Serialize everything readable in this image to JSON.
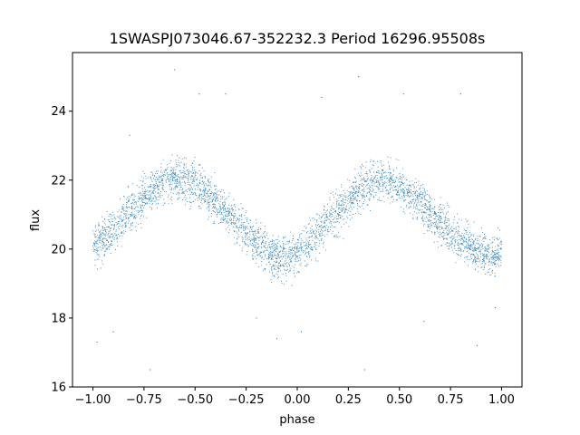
{
  "chart_data": {
    "type": "scatter",
    "title": "1SWASPJ073046.67-352232.3 Period 16296.95508s",
    "xlabel": "phase",
    "ylabel": "flux",
    "xlim": [
      -1.1,
      1.1
    ],
    "ylim": [
      16.0,
      25.7
    ],
    "xticks": [
      -1.0,
      -0.75,
      -0.5,
      -0.25,
      0.0,
      0.25,
      0.5,
      0.75,
      1.0
    ],
    "xtick_labels": [
      "−1.00",
      "−0.75",
      "−0.50",
      "−0.25",
      "0.00",
      "0.25",
      "0.50",
      "0.75",
      "1.00"
    ],
    "yticks": [
      16,
      18,
      20,
      22,
      24
    ],
    "ytick_labels": [
      "16",
      "18",
      "20",
      "22",
      "24"
    ],
    "grid": false,
    "legend": "none",
    "series": [
      {
        "marker_color": "#1f77b4",
        "pattern": "sinusoidal phase-folded light curve, two cycles across phase -1 to 1",
        "x_range": [
          -1.0,
          1.0
        ],
        "mean_flux": 20.9,
        "amplitude": 1.1,
        "minima_phase": [
          -1.0,
          -0.05,
          0.95
        ],
        "maxima_phase": [
          -0.55,
          0.42
        ],
        "points": [
          [
            -1.0,
            20.1
          ],
          [
            -0.95,
            20.3
          ],
          [
            -0.9,
            20.6
          ],
          [
            -0.85,
            20.9
          ],
          [
            -0.8,
            21.2
          ],
          [
            -0.75,
            21.5
          ],
          [
            -0.7,
            21.8
          ],
          [
            -0.65,
            21.95
          ],
          [
            -0.6,
            22.0
          ],
          [
            -0.55,
            22.0
          ],
          [
            -0.5,
            21.9
          ],
          [
            -0.45,
            21.7
          ],
          [
            -0.4,
            21.4
          ],
          [
            -0.35,
            21.1
          ],
          [
            -0.3,
            20.8
          ],
          [
            -0.25,
            20.5
          ],
          [
            -0.2,
            20.2
          ],
          [
            -0.15,
            19.95
          ],
          [
            -0.1,
            19.8
          ],
          [
            -0.05,
            19.75
          ],
          [
            0.0,
            19.9
          ],
          [
            0.05,
            20.15
          ],
          [
            0.1,
            20.45
          ],
          [
            0.15,
            20.8
          ],
          [
            0.2,
            21.1
          ],
          [
            0.25,
            21.4
          ],
          [
            0.3,
            21.7
          ],
          [
            0.35,
            21.9
          ],
          [
            0.4,
            22.0
          ],
          [
            0.45,
            22.0
          ],
          [
            0.5,
            21.85
          ],
          [
            0.55,
            21.6
          ],
          [
            0.6,
            21.35
          ],
          [
            0.65,
            21.05
          ],
          [
            0.7,
            20.75
          ],
          [
            0.75,
            20.5
          ],
          [
            0.8,
            20.25
          ],
          [
            0.85,
            20.05
          ],
          [
            0.9,
            19.9
          ],
          [
            0.95,
            19.8
          ],
          [
            1.0,
            19.95
          ]
        ],
        "outliers": [
          [
            -0.98,
            17.3
          ],
          [
            -0.9,
            17.6
          ],
          [
            -0.82,
            23.3
          ],
          [
            -0.6,
            25.2
          ],
          [
            -0.48,
            24.5
          ],
          [
            -0.35,
            24.5
          ],
          [
            -0.2,
            18.0
          ],
          [
            -0.1,
            17.4
          ],
          [
            0.02,
            17.6
          ],
          [
            0.12,
            24.4
          ],
          [
            0.3,
            25.0
          ],
          [
            0.52,
            24.5
          ],
          [
            0.62,
            17.9
          ],
          [
            0.8,
            24.5
          ],
          [
            0.88,
            17.2
          ],
          [
            0.97,
            18.3
          ],
          [
            -0.72,
            16.5
          ],
          [
            0.33,
            16.5
          ]
        ]
      }
    ]
  }
}
